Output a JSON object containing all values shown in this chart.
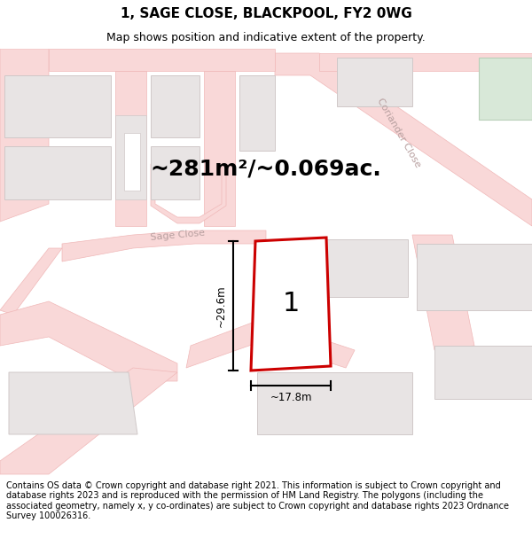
{
  "title": "1, SAGE CLOSE, BLACKPOOL, FY2 0WG",
  "subtitle": "Map shows position and indicative extent of the property.",
  "area_text": "~281m²/~0.069ac.",
  "dim_width": "~17.8m",
  "dim_height": "~29.6m",
  "plot_label": "1",
  "footer_text": "Contains OS data © Crown copyright and database right 2021. This information is subject to Crown copyright and database rights 2023 and is reproduced with the permission of HM Land Registry. The polygons (including the associated geometry, namely x, y co-ordinates) are subject to Crown copyright and database rights 2023 Ordnance Survey 100026316.",
  "title_fontsize": 11,
  "subtitle_fontsize": 9,
  "area_fontsize": 18,
  "footer_fontsize": 7.0,
  "map_bg": "#ffffff",
  "road_fill": "#f9d8d8",
  "road_edge": "#f0b8b8",
  "bldg_fill": "#e8e4e4",
  "bldg_edge": "#d0c8c8",
  "plot_fill": "#ffffff",
  "plot_edge": "#cc0000",
  "green_fill": "#d8e8d8",
  "green_edge": "#b8d0b8",
  "street_color": "#c8b0b0",
  "dim_color": "#000000"
}
